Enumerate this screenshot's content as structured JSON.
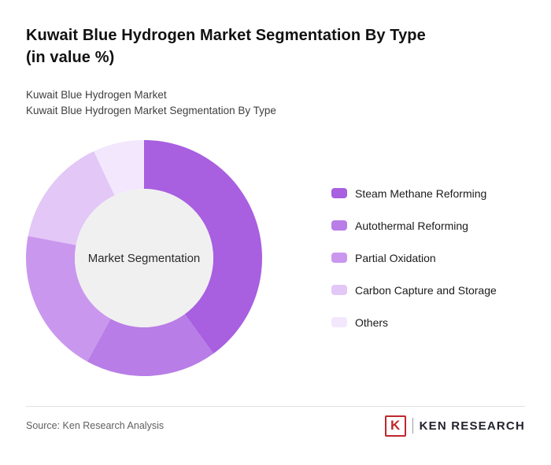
{
  "page": {
    "title": "Kuwait Blue Hydrogen Market Segmentation By Type (in value %)",
    "title_line1": "Kuwait Blue Hydrogen Market Segmentation By Type",
    "title_line2": "(in value %)",
    "subtitle_line1": "Kuwait Blue Hydrogen Market",
    "subtitle_line2": "Kuwait Blue Hydrogen Market Segmentation By Type",
    "source": "Source: Ken Research Analysis",
    "brand": {
      "logo_letter": "K",
      "name": "KEN RESEARCH",
      "color": "#c0272d"
    }
  },
  "chart_data": {
    "type": "pie",
    "subtype": "donut",
    "title": "Kuwait Blue Hydrogen Market Segmentation By Type (in value %)",
    "center_label": "Market Segmentation",
    "center_fill": "#f0f0f0",
    "legend_position": "right",
    "start_angle_deg": 0,
    "direction": "clockwise",
    "outer_radius_px": 150,
    "inner_radius_px": 88,
    "series": [
      {
        "name": "Steam Methane Reforming",
        "value": 40,
        "color": "#a85fe0"
      },
      {
        "name": "Autothermal Reforming",
        "value": 18,
        "color": "#b87de6"
      },
      {
        "name": "Partial Oxidation",
        "value": 20,
        "color": "#ca97ee"
      },
      {
        "name": "Carbon Capture and Storage",
        "value": 15,
        "color": "#e2c7f7"
      },
      {
        "name": "Others",
        "value": 7,
        "color": "#f2e7fd"
      }
    ]
  }
}
